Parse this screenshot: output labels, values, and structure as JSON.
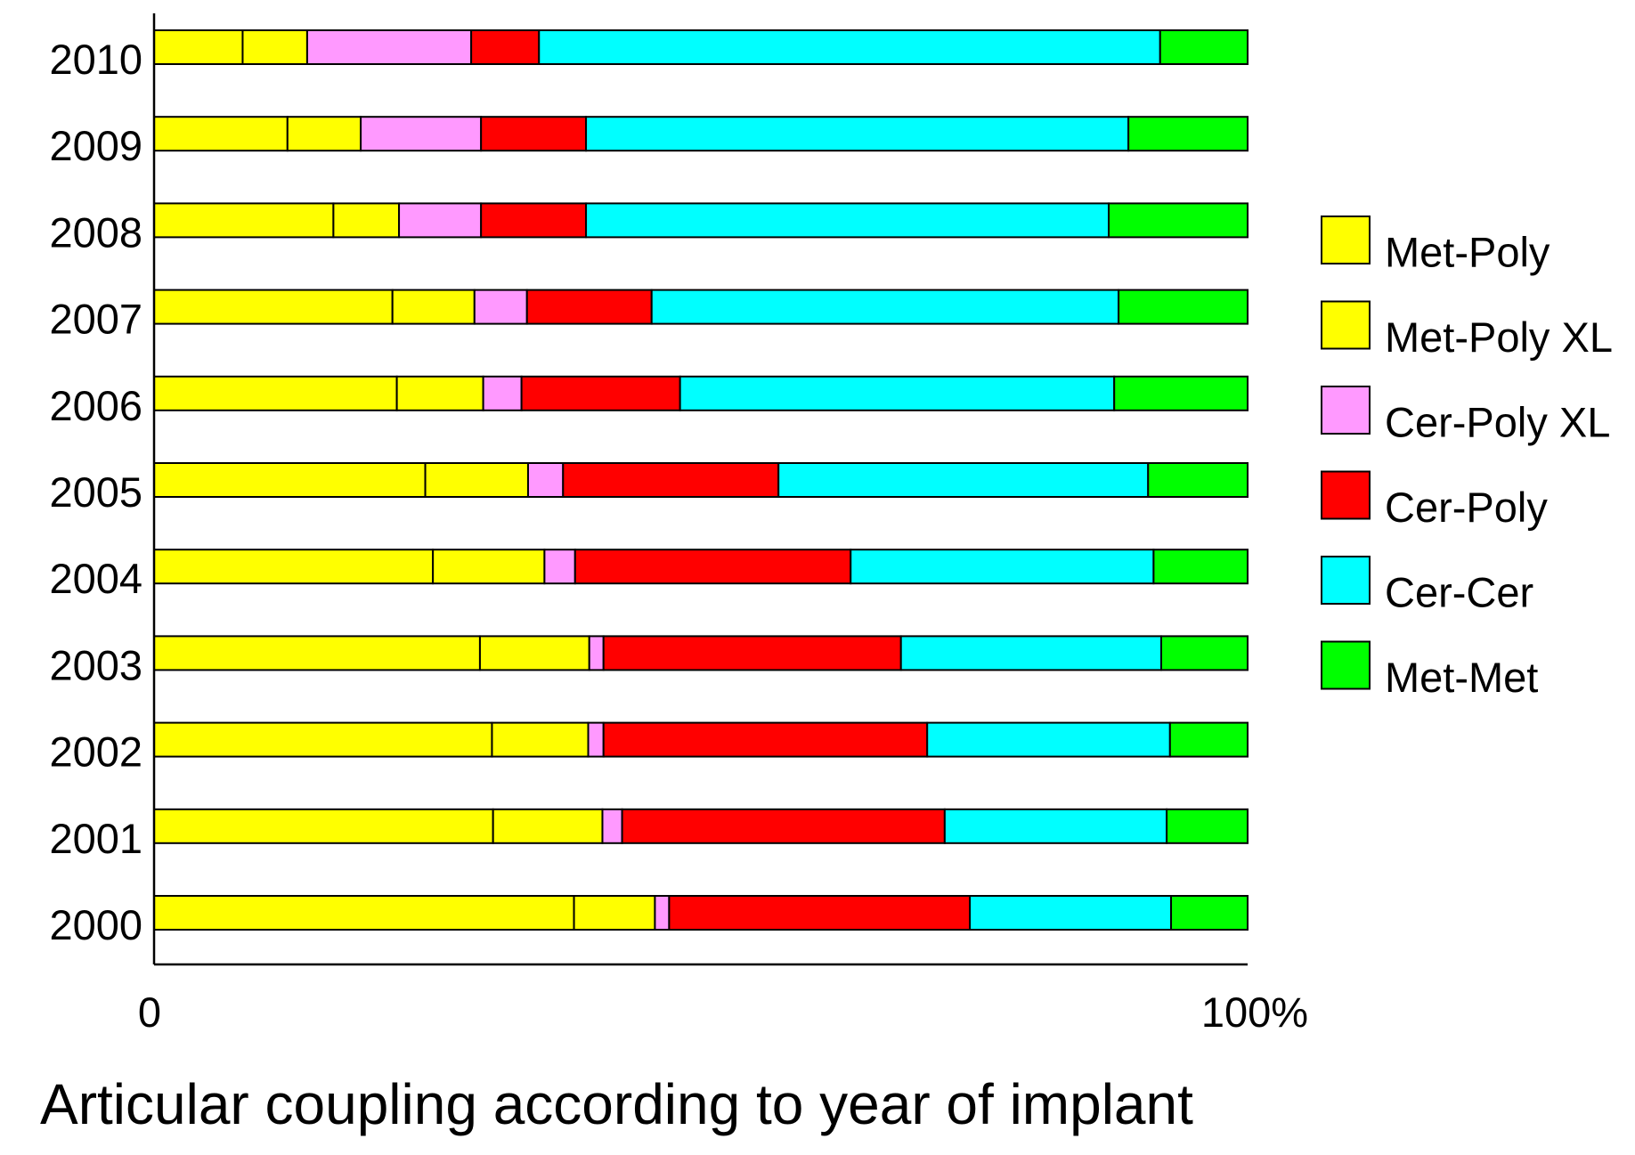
{
  "chart_data": {
    "type": "bar",
    "orientation": "horizontal",
    "stacked": true,
    "normalized": true,
    "title": "Articular coupling according to year of implant",
    "x_ticks": [
      "0",
      "100%"
    ],
    "xlim": [
      0,
      100
    ],
    "categories": [
      "2010",
      "2009",
      "2008",
      "2007",
      "2006",
      "2005",
      "2004",
      "2003",
      "2002",
      "2001",
      "2000"
    ],
    "series": [
      {
        "name": "Met-Poly",
        "color": "#ffff00",
        "values": [
          8.1,
          12.2,
          16.4,
          21.8,
          22.2,
          24.8,
          25.5,
          29.8,
          30.9,
          31.0,
          38.4
        ]
      },
      {
        "name": "Met-Poly XL",
        "color": "#ffff00",
        "values": [
          5.9,
          6.7,
          6.0,
          7.5,
          7.9,
          9.4,
          10.2,
          10.0,
          8.8,
          10.0,
          7.4
        ]
      },
      {
        "name": "Cer-Poly XL",
        "color": "#ff99ff",
        "values": [
          15.0,
          11.0,
          7.5,
          4.8,
          3.5,
          3.2,
          2.8,
          1.3,
          1.4,
          1.8,
          1.3
        ]
      },
      {
        "name": "Cer-Poly",
        "color": "#ff0000",
        "values": [
          6.2,
          9.6,
          9.6,
          11.4,
          14.5,
          19.7,
          25.2,
          27.2,
          29.6,
          29.5,
          27.5
        ]
      },
      {
        "name": "Cer-Cer",
        "color": "#00ffff",
        "values": [
          56.8,
          49.6,
          47.8,
          42.7,
          39.7,
          33.8,
          27.7,
          23.8,
          22.2,
          20.3,
          18.4
        ]
      },
      {
        "name": "Met-Met",
        "color": "#00ff00",
        "values": [
          8.0,
          10.9,
          12.7,
          11.8,
          12.2,
          9.1,
          8.6,
          7.9,
          7.1,
          7.4,
          7.0
        ]
      }
    ],
    "grid": false,
    "legend_position": "right"
  }
}
